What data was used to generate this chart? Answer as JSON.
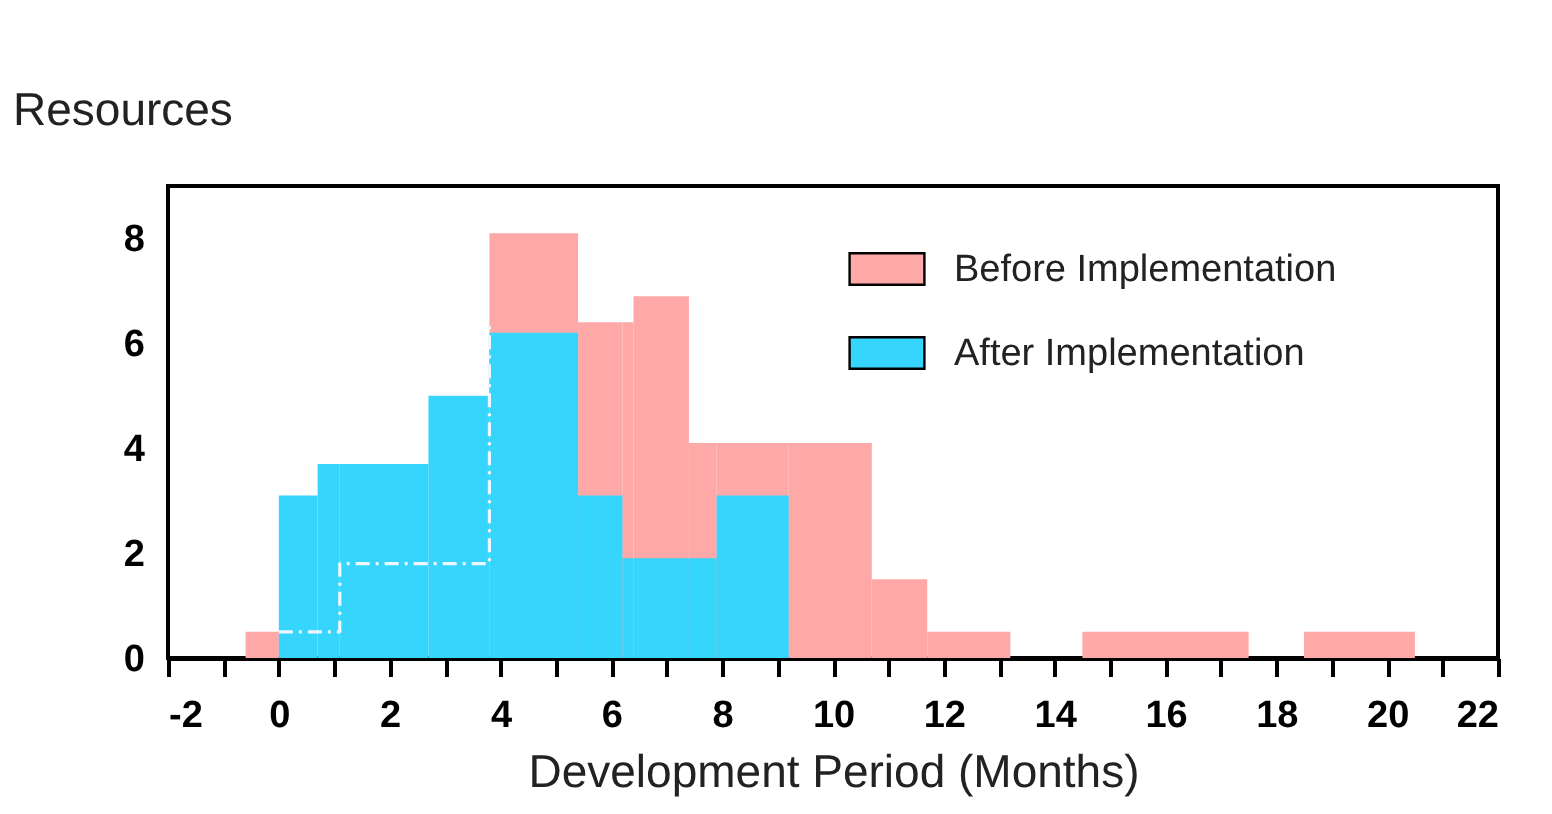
{
  "chart_data": {
    "type": "histogram",
    "ylabel": "Resources",
    "xlabel": "Development Period (Months)",
    "xlim": [
      -2,
      22
    ],
    "xticks": [
      -2,
      {
        "value": -1,
        "label": null
      },
      0,
      {
        "value": 1,
        "label": null
      },
      2,
      {
        "value": 3,
        "label": null
      },
      4,
      {
        "value": 5,
        "label": null
      },
      6,
      {
        "value": 7,
        "label": null
      },
      8,
      {
        "value": 9,
        "label": null
      },
      10,
      {
        "value": 11,
        "label": null
      },
      12,
      {
        "value": 13,
        "label": null
      },
      14,
      {
        "value": 15,
        "label": null
      },
      16,
      {
        "value": 17,
        "label": null
      },
      18,
      {
        "value": 19,
        "label": null
      },
      20,
      {
        "value": 21,
        "label": null
      },
      22
    ],
    "ylim": [
      0,
      9
    ],
    "yticks": [
      0,
      2,
      4,
      6,
      8
    ],
    "grid": false,
    "legend": "top right",
    "bins": [
      -0.6,
      0,
      0.7,
      1.1,
      2.7,
      3.8,
      5.2,
      5.4,
      6.2,
      6.4,
      7.4,
      7.9,
      9.2,
      10.7,
      11.7,
      13.2,
      14.5,
      17.5,
      18.5,
      20.5
    ],
    "series": [
      {
        "name": "Before Implementation",
        "color": "#ffa8a8",
        "values": [
          0.5,
          null,
          null,
          null,
          null,
          8.1,
          8.1,
          6.4,
          6.4,
          6.9,
          4.1,
          4.1,
          4.1,
          1.5,
          0.5,
          null,
          0.5,
          null,
          0.5
        ]
      },
      {
        "name": "After Implementation",
        "color": "#36d5fc",
        "values": [
          null,
          3.1,
          3.7,
          3.7,
          5,
          6.2,
          6.2,
          3.1,
          1.9,
          1.9,
          1.9,
          3.1,
          null,
          null,
          null,
          null,
          null,
          null,
          null
        ]
      },
      {
        "type": "step",
        "color": "#eef6ff",
        "line_style": "dashed",
        "x": [
          0,
          1.1,
          3.8
        ],
        "values": [
          0.5,
          1.8,
          6.4
        ]
      }
    ]
  }
}
